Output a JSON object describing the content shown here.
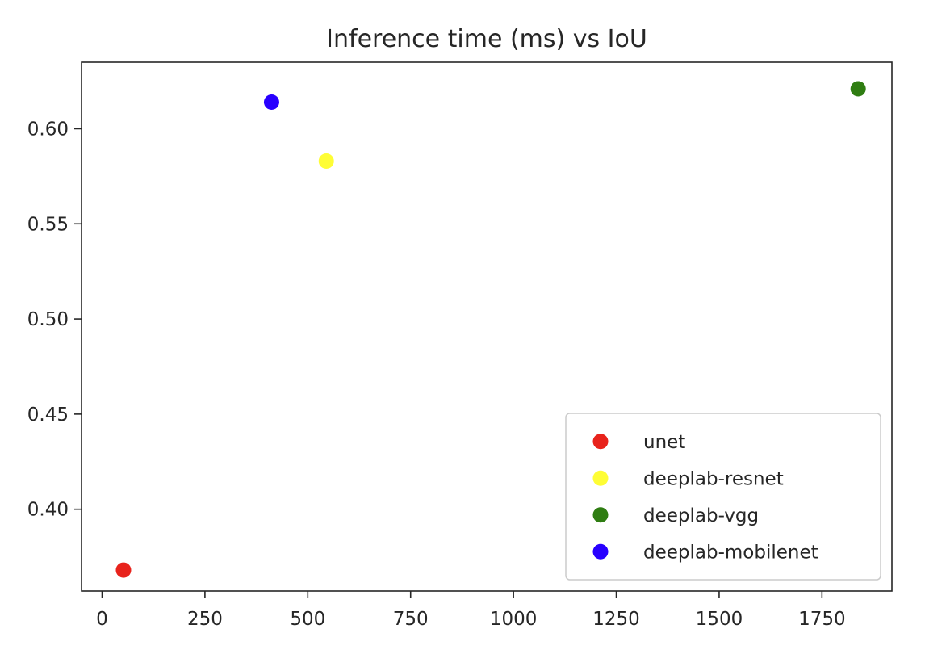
{
  "chart_data": {
    "type": "scatter",
    "title": "Inference time (ms) vs IoU",
    "xlabel": "",
    "ylabel": "",
    "xlim": [
      -50,
      1920
    ],
    "ylim": [
      0.357,
      0.635
    ],
    "x_ticks": [
      0,
      250,
      500,
      750,
      1000,
      1250,
      1500,
      1750
    ],
    "x_tick_labels": [
      "0",
      "250",
      "500",
      "750",
      "1000",
      "1250",
      "1500",
      "1750"
    ],
    "y_ticks": [
      0.4,
      0.45,
      0.5,
      0.55,
      0.6
    ],
    "y_tick_labels": [
      "0.40",
      "0.45",
      "0.50",
      "0.55",
      "0.60"
    ],
    "grid": false,
    "legend_position": "lower-right",
    "series": [
      {
        "name": "unet",
        "color": "#e8231c",
        "x": [
          52
        ],
        "y": [
          0.368
        ]
      },
      {
        "name": "deeplab-resnet",
        "color": "#fefd35",
        "x": [
          545
        ],
        "y": [
          0.583
        ]
      },
      {
        "name": "deeplab-vgg",
        "color": "#2f7d12",
        "x": [
          1838
        ],
        "y": [
          0.621
        ]
      },
      {
        "name": "deeplab-mobilenet",
        "color": "#2800ff",
        "x": [
          412
        ],
        "y": [
          0.614
        ]
      }
    ]
  }
}
